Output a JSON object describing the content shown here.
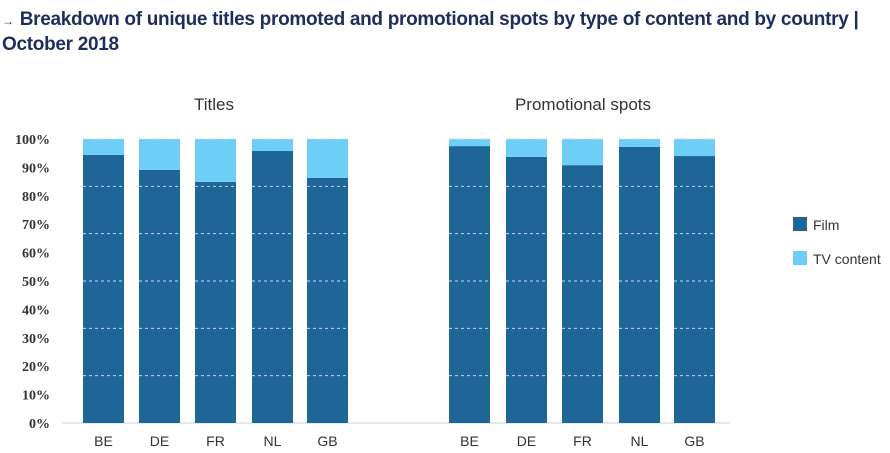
{
  "title": "Breakdown of unique titles promoted and promotional spots by type of content and by country | October 2018",
  "title_icon": "arrow-right-icon",
  "chart_data": [
    {
      "type": "bar",
      "stacked": true,
      "title": "Titles",
      "categories": [
        "BE",
        "DE",
        "FR",
        "NL",
        "GB"
      ],
      "series": [
        {
          "name": "Film",
          "values": [
            94.4,
            89.1,
            84.9,
            95.8,
            86.3
          ]
        },
        {
          "name": "TV content",
          "values": [
            5.6,
            10.9,
            15.1,
            4.2,
            13.7
          ]
        }
      ],
      "ylim": [
        0,
        100
      ]
    },
    {
      "type": "bar",
      "stacked": true,
      "title": "Promotional spots",
      "categories": [
        "BE",
        "DE",
        "FR",
        "NL",
        "GB"
      ],
      "series": [
        {
          "name": "Film",
          "values": [
            97.5,
            93.7,
            90.8,
            97.2,
            94.0
          ]
        },
        {
          "name": "TV content",
          "values": [
            2.5,
            6.3,
            9.2,
            2.8,
            6.0
          ]
        }
      ],
      "ylim": [
        0,
        100
      ]
    }
  ],
  "yticks": [
    "0%",
    "10%",
    "20%",
    "30%",
    "40%",
    "50%",
    "60%",
    "70%",
    "80%",
    "90%",
    "100%"
  ],
  "legend": [
    {
      "name": "Film",
      "color": "#1f6698"
    },
    {
      "name": "TV content",
      "color": "#6dcff6"
    }
  ]
}
